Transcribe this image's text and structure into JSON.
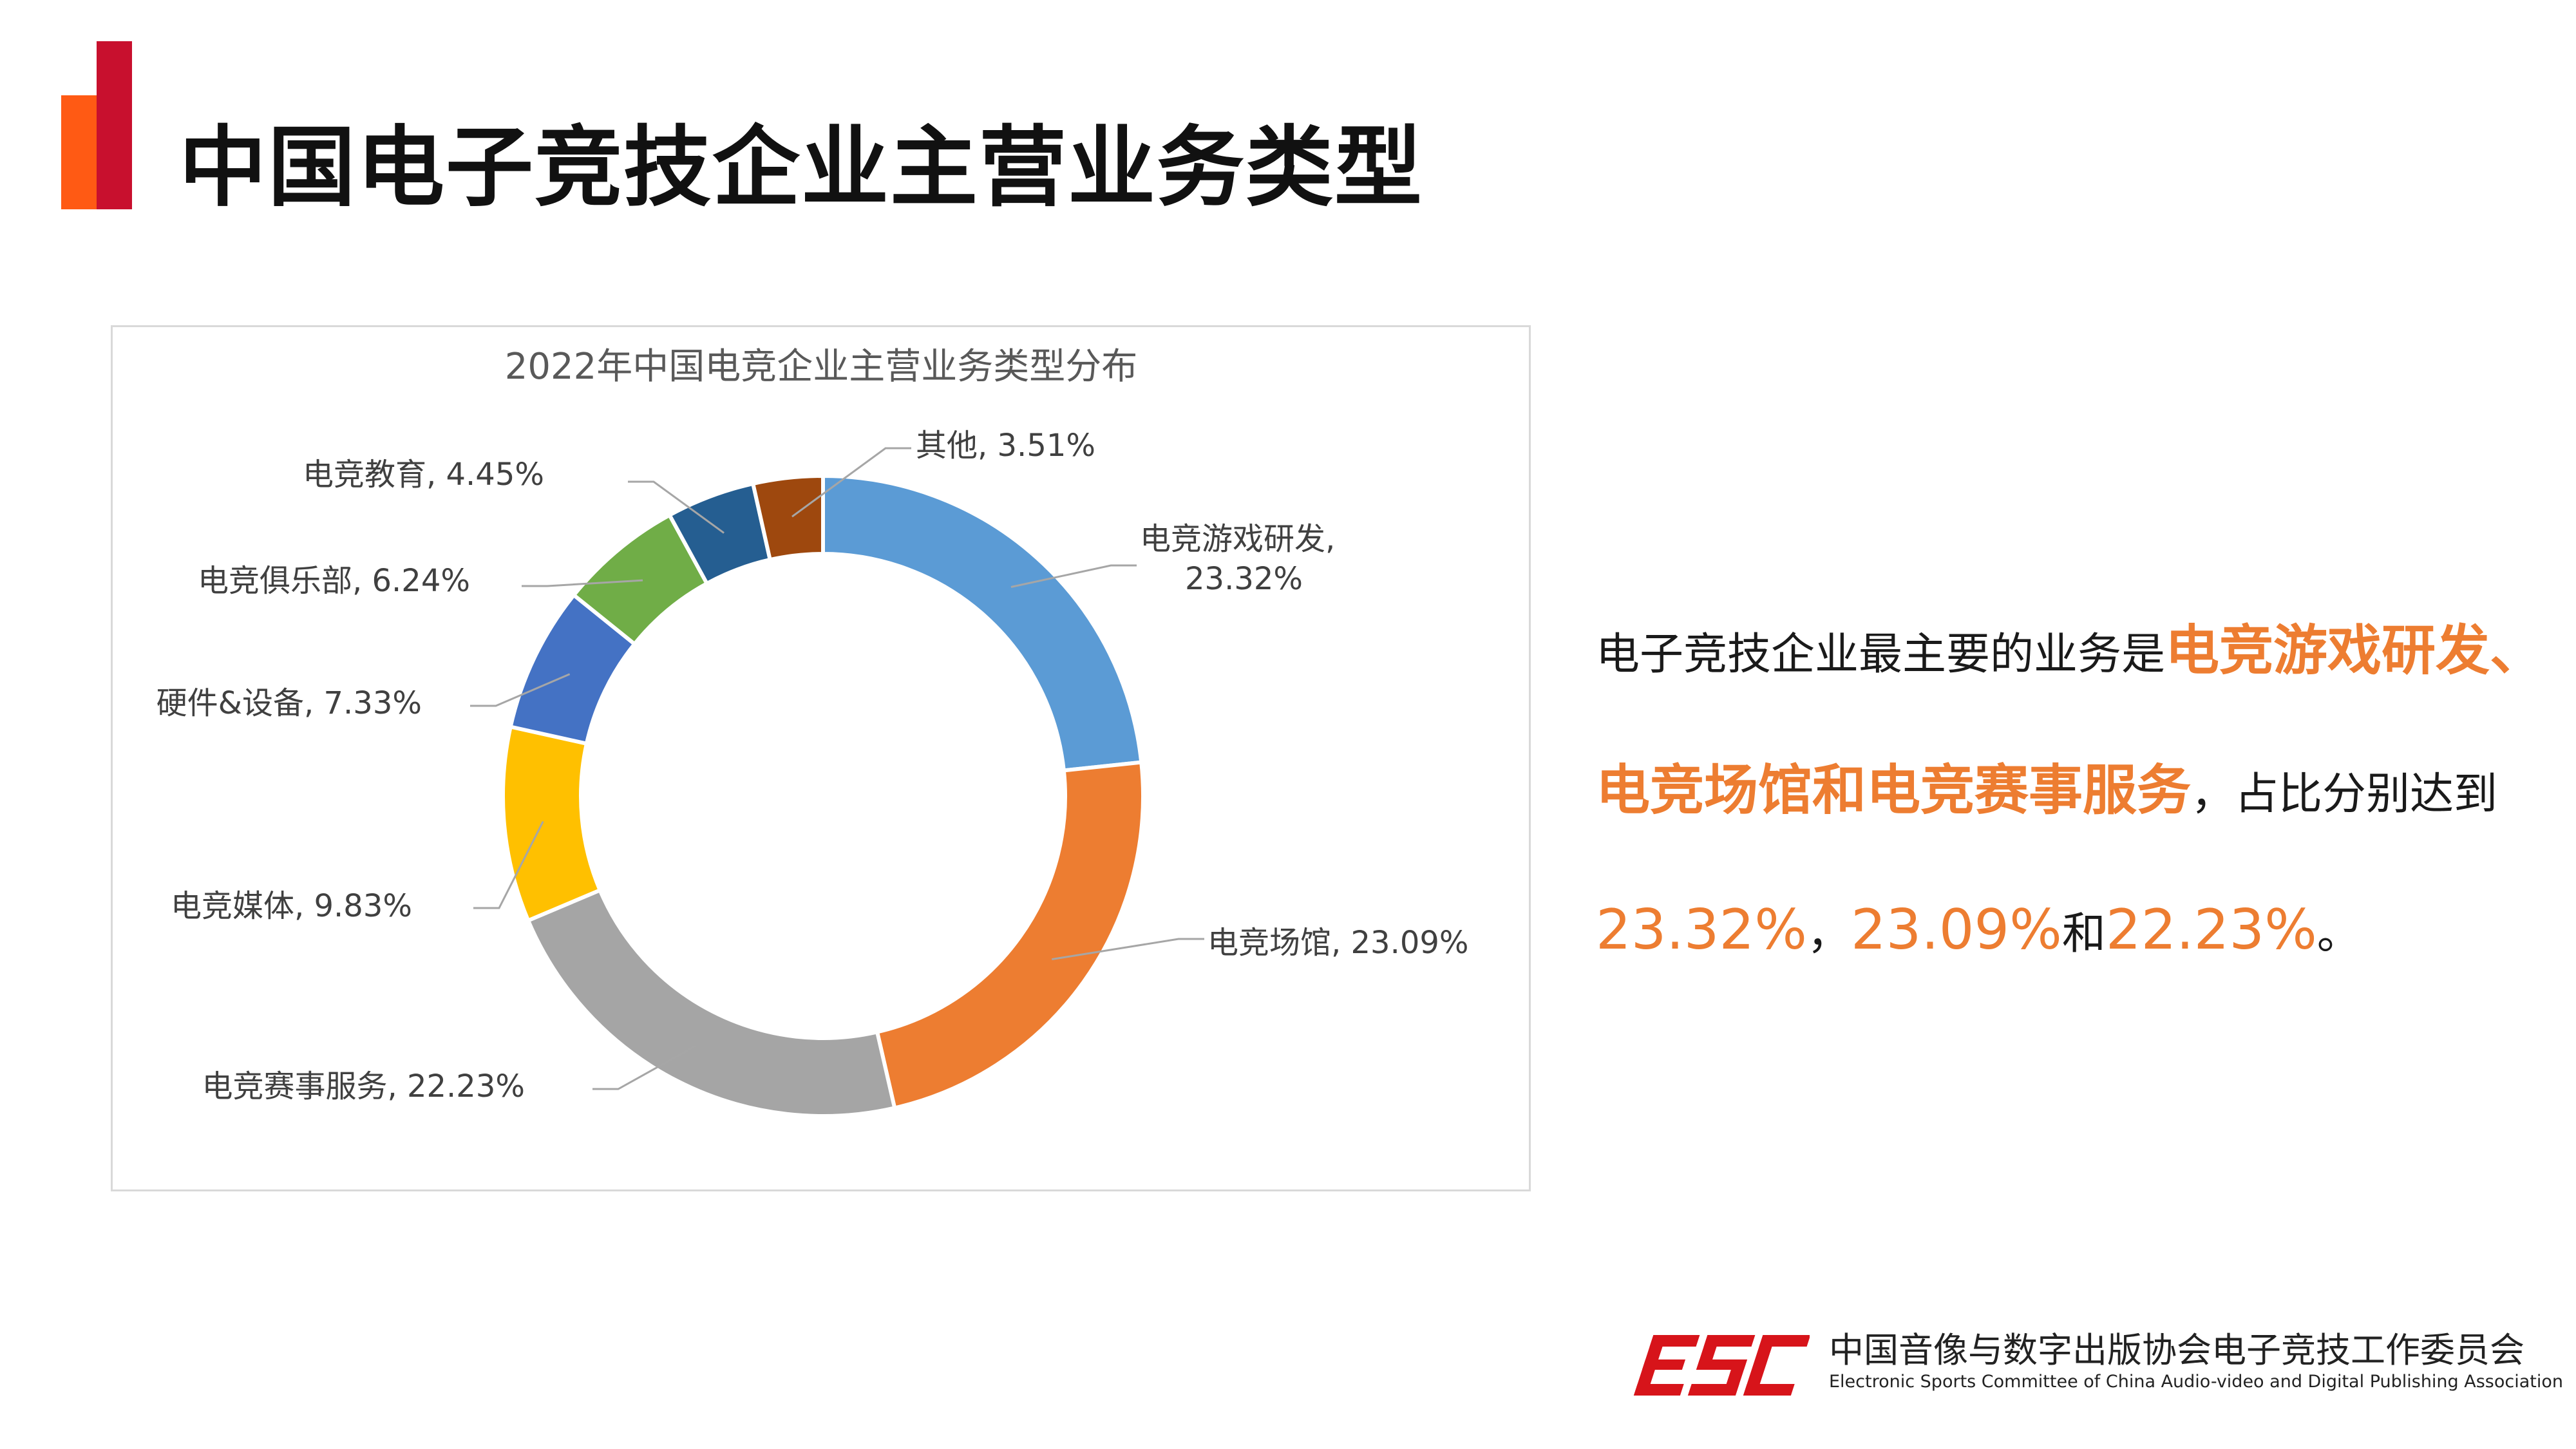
{
  "header": {
    "title": "中国电子竞技企业主营业务类型",
    "accent_colors": [
      "#ff5a14",
      "#c8102e"
    ]
  },
  "chart_data": {
    "type": "pie",
    "variant": "donut",
    "title": "2022年中国电竞企业主营业务类型分布",
    "slices": [
      {
        "label": "电竞游戏研发",
        "label_text": "电竞游戏研发,",
        "value": 23.32,
        "value_text": "23.32%",
        "color": "#5b9bd5"
      },
      {
        "label": "电竞场馆",
        "label_text": "电竞场馆, 23.09%",
        "value": 23.09,
        "color": "#ed7d31"
      },
      {
        "label": "电竞赛事服务",
        "label_text": "电竞赛事服务, 22.23%",
        "value": 22.23,
        "color": "#a5a5a5"
      },
      {
        "label": "电竞媒体",
        "label_text": "电竞媒体, 9.83%",
        "value": 9.83,
        "color": "#ffc000"
      },
      {
        "label": "硬件&设备",
        "label_text": "硬件&设备, 7.33%",
        "value": 7.33,
        "color": "#4472c4"
      },
      {
        "label": "电竞俱乐部",
        "label_text": "电竞俱乐部, 6.24%",
        "value": 6.24,
        "color": "#70ad47"
      },
      {
        "label": "电竞教育",
        "label_text": "电竞教育, 4.45%",
        "value": 4.45,
        "color": "#255e91"
      },
      {
        "label": "其他",
        "label_text": "其他, 3.51%",
        "value": 3.51,
        "color": "#9e480e"
      }
    ]
  },
  "summary": {
    "part1": "电子竞技企业最主要的业务是",
    "highlight": "电竞游戏研发、电竞场馆和电竞赛事服务",
    "part2": "，占比分别达到",
    "v1": "23.32%",
    "sep": "，",
    "v2": "23.09%",
    "and": "和",
    "v3": "22.23%",
    "end": "。"
  },
  "footer": {
    "logo_text": "ESC",
    "logo_color": "#d7141a",
    "org_cn": "中国音像与数字出版协会电子竞技工作委员会",
    "org_en": "Electronic Sports Committee of China Audio-video and Digital Publishing Association"
  }
}
